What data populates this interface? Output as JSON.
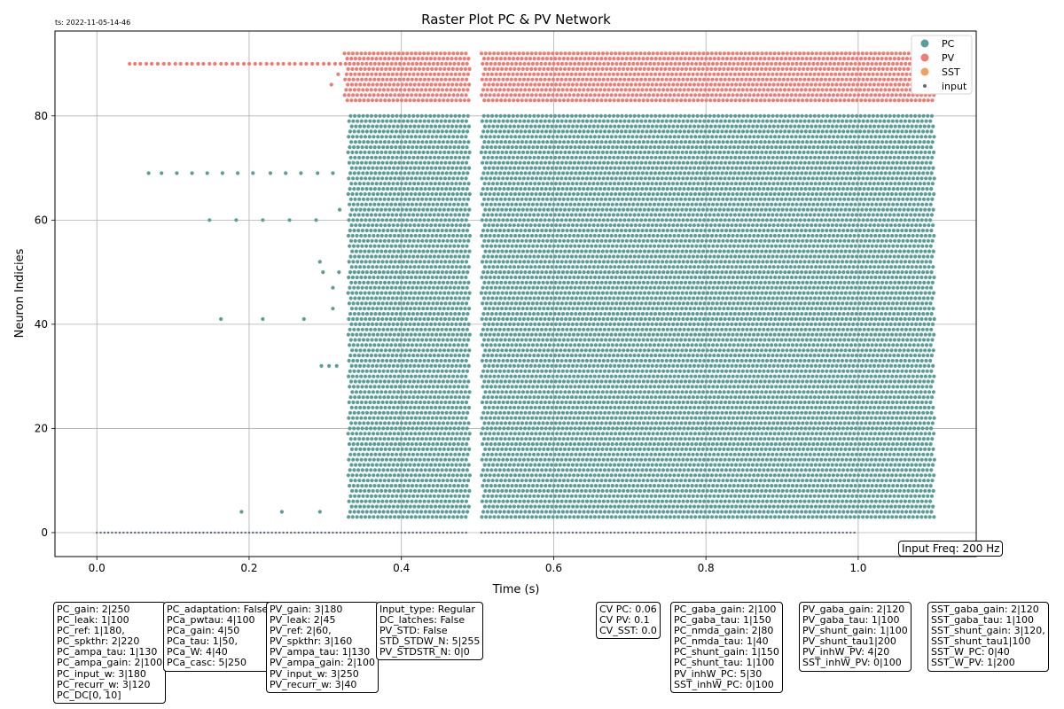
{
  "timestamp": "ts: 2022-11-05-14-46",
  "input_freq": "Input Freq: 200 Hz",
  "colors": {
    "PC": "#5a9e99",
    "PV": "#ee7b74",
    "SST": "#f0a060",
    "input": "#5e6b78",
    "grid": "#b0b0b0"
  },
  "chart_data": {
    "type": "scatter",
    "title": "Raster Plot PC & PV Network",
    "xlabel": "Time (s)",
    "ylabel": "Neuron Indicies",
    "xlim": [
      -0.055,
      1.155
    ],
    "ylim": [
      -4.6,
      96.3
    ],
    "xticks": [
      0.0,
      0.2,
      0.4,
      0.6,
      0.8,
      1.0
    ],
    "xtick_labels": [
      "0.0",
      "0.2",
      "0.4",
      "0.6",
      "0.8",
      "1.0"
    ],
    "yticks": [
      0,
      20,
      40,
      60,
      80
    ],
    "ytick_labels": [
      "0",
      "20",
      "40",
      "60",
      "80"
    ],
    "grid": true,
    "legend_position": "top-right",
    "legend": [
      "PC",
      "PV",
      "SST",
      "input"
    ],
    "series": [
      {
        "name": "PC",
        "neurons": [
          3,
          80
        ],
        "bursts": [
          [
            0.33,
            0.49
          ],
          [
            0.505,
            1.1
          ]
        ],
        "isi": 0.0055,
        "sparse_spikes": [
          [
            0.068,
            69
          ],
          [
            0.085,
            69
          ],
          [
            0.105,
            69
          ],
          [
            0.125,
            69
          ],
          [
            0.145,
            69
          ],
          [
            0.165,
            69
          ],
          [
            0.185,
            69
          ],
          [
            0.205,
            69
          ],
          [
            0.228,
            69
          ],
          [
            0.248,
            69
          ],
          [
            0.268,
            69
          ],
          [
            0.29,
            69
          ],
          [
            0.31,
            69
          ],
          [
            0.148,
            60
          ],
          [
            0.183,
            60
          ],
          [
            0.218,
            60
          ],
          [
            0.253,
            60
          ],
          [
            0.288,
            60
          ],
          [
            0.319,
            62
          ],
          [
            0.163,
            41
          ],
          [
            0.218,
            41
          ],
          [
            0.272,
            41
          ],
          [
            0.31,
            43
          ],
          [
            0.295,
            32
          ],
          [
            0.305,
            32
          ],
          [
            0.315,
            32
          ],
          [
            0.293,
            52
          ],
          [
            0.297,
            50
          ],
          [
            0.31,
            47
          ],
          [
            0.318,
            50
          ],
          [
            0.19,
            4
          ],
          [
            0.243,
            4
          ],
          [
            0.293,
            4
          ]
        ]
      },
      {
        "name": "PV",
        "neurons": [
          83,
          92
        ],
        "bursts": [
          [
            0.325,
            0.49
          ],
          [
            0.505,
            1.1
          ]
        ],
        "isi": 0.0055,
        "sparse_spikes": [
          [
            0.043,
            90
          ],
          [
            0.05,
            90
          ],
          [
            0.057,
            90
          ],
          [
            0.065,
            90
          ],
          [
            0.072,
            90
          ],
          [
            0.08,
            90
          ],
          [
            0.088,
            90
          ],
          [
            0.095,
            90
          ],
          [
            0.103,
            90
          ],
          [
            0.11,
            90
          ],
          [
            0.118,
            90
          ],
          [
            0.125,
            90
          ],
          [
            0.133,
            90
          ],
          [
            0.14,
            90
          ],
          [
            0.148,
            90
          ],
          [
            0.155,
            90
          ],
          [
            0.163,
            90
          ],
          [
            0.17,
            90
          ],
          [
            0.178,
            90
          ],
          [
            0.185,
            90
          ],
          [
            0.193,
            90
          ],
          [
            0.2,
            90
          ],
          [
            0.208,
            90
          ],
          [
            0.215,
            90
          ],
          [
            0.223,
            90
          ],
          [
            0.23,
            90
          ],
          [
            0.238,
            90
          ],
          [
            0.245,
            90
          ],
          [
            0.253,
            90
          ],
          [
            0.26,
            90
          ],
          [
            0.268,
            90
          ],
          [
            0.275,
            90
          ],
          [
            0.283,
            90
          ],
          [
            0.29,
            90
          ],
          [
            0.298,
            90
          ],
          [
            0.305,
            90
          ],
          [
            0.313,
            90
          ],
          [
            0.32,
            90
          ],
          [
            0.308,
            86
          ],
          [
            0.317,
            88
          ]
        ]
      },
      {
        "name": "SST",
        "neurons": [],
        "bursts": [],
        "isi": 0,
        "sparse_spikes": []
      },
      {
        "name": "input",
        "neurons": [
          0,
          0
        ],
        "bursts": [
          [
            0.0,
            0.49
          ],
          [
            0.505,
            1.0
          ]
        ],
        "isi": 0.005,
        "sparse_spikes": []
      }
    ]
  },
  "info_boxes": [
    {
      "lines": [
        "PC_gain: 2|250",
        "PC_leak: 1|100",
        "PC_ref: 1|180,",
        "PC_spkthr: 2|220",
        "PC_ampa_tau: 1|130",
        "PC_ampa_gain: 2|100",
        "PC_input_w: 3|180",
        "PC_recurr_w: 3|120",
        "PC_DC[0, 10]"
      ]
    },
    {
      "lines": [
        "PC_adaptation: False",
        "PCa_pwtau: 4|100",
        "PCa_gain: 4|50",
        "PCa_tau: 1|50,",
        "PCa_W: 4|40",
        "PCa_casc: 5|250"
      ]
    },
    {
      "lines": [
        "PV_gain: 3|180",
        "PV_leak: 2|45",
        "PV_ref: 2|60,",
        "PV_spkthr: 3|160",
        "PV_ampa_tau: 1|130",
        "PV_ampa_gain: 2|100",
        "PV_input_w: 3|250",
        "PV_recurr_w: 3|40"
      ]
    },
    {
      "lines": [
        "Input_type: Regular",
        "DC_latches: False",
        "PV_STD: False",
        "STD_STDW_N: 5|255",
        "PV_STDSTR_N: 0|0"
      ]
    },
    {
      "lines": [
        "CV PC: 0.06",
        "CV PV: 0.1",
        "CV_SST: 0.0"
      ]
    },
    {
      "lines": [
        "PC_gaba_gain: 2|100",
        "PC_gaba_tau: 1|150",
        "PC_nmda_gain: 2|80",
        "PC_nmda_tau: 1|40",
        "PC_shunt_gain: 1|150",
        "PC_shunt_tau: 1|100",
        "PV_inhW_PC: 5|30",
        "SST_inhW_PC: 0|100"
      ]
    },
    {
      "lines": [
        "PV_gaba_gain: 2|120",
        "PV_gaba_tau: 1|100",
        "PV_shunt_gain: 1|100",
        "PV_shunt_tau1|200",
        "PV_inhW_PV: 4|20",
        "SST_inhW_PV: 0|100"
      ]
    },
    {
      "lines": [
        "SST_gaba_gain: 2|120",
        "SST_gaba_tau: 1|100",
        "SST_shunt_gain: 3|120,",
        "SST_shunt_tau1|100",
        "SST_W_PC: 0|40",
        "SST_W_PV: 1|200"
      ]
    }
  ]
}
